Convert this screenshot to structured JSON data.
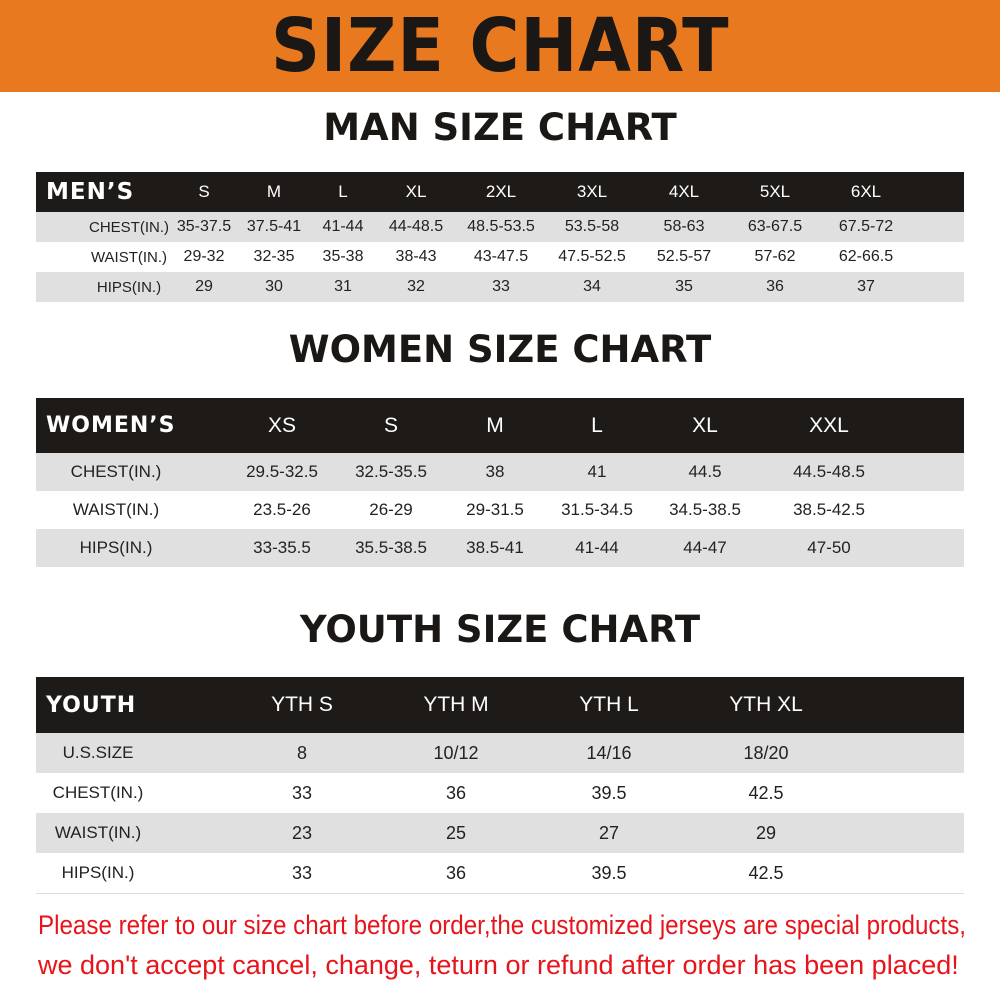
{
  "banner": "SIZE CHART",
  "men": {
    "title": "MAN SIZE CHART",
    "header": [
      "MEN’S",
      "S",
      "M",
      "L",
      "XL",
      "2XL",
      "3XL",
      "4XL",
      "5XL",
      "6XL"
    ],
    "rows": [
      [
        "CHEST(IN.)",
        "35-37.5",
        "37.5-41",
        "41-44",
        "44-48.5",
        "48.5-53.5",
        "53.5-58",
        "58-63",
        "63-67.5",
        "67.5-72"
      ],
      [
        "WAIST(IN.)",
        "29-32",
        "32-35",
        "35-38",
        "38-43",
        "43-47.5",
        "47.5-52.5",
        "52.5-57",
        "57-62",
        "62-66.5"
      ],
      [
        "HIPS(IN.)",
        "29",
        "30",
        "31",
        "32",
        "33",
        "34",
        "35",
        "36",
        "37"
      ]
    ]
  },
  "women": {
    "title": "WOMEN SIZE CHART",
    "header": [
      "WOMEN’S",
      "XS",
      "S",
      "M",
      "L",
      "XL",
      "XXL"
    ],
    "rows": [
      [
        "CHEST(IN.)",
        "29.5-32.5",
        "32.5-35.5",
        "38",
        "41",
        "44.5",
        "44.5-48.5"
      ],
      [
        "WAIST(IN.)",
        "23.5-26",
        "26-29",
        "29-31.5",
        "31.5-34.5",
        "34.5-38.5",
        "38.5-42.5"
      ],
      [
        "HIPS(IN.)",
        "33-35.5",
        "35.5-38.5",
        "38.5-41",
        "41-44",
        "44-47",
        "47-50"
      ]
    ]
  },
  "youth": {
    "title": "YOUTH SIZE CHART",
    "header": [
      "YOUTH",
      "YTH S",
      "YTH M",
      "YTH L",
      "YTH XL"
    ],
    "rows": [
      [
        "U.S.SIZE",
        "8",
        "10/12",
        "14/16",
        "18/20"
      ],
      [
        "CHEST(IN.)",
        "33",
        "36",
        "39.5",
        "42.5"
      ],
      [
        "WAIST(IN.)",
        "23",
        "25",
        "27",
        "29"
      ],
      [
        "HIPS(IN.)",
        "33",
        "36",
        "39.5",
        "42.5"
      ]
    ]
  },
  "notice": {
    "line1": "Please refer to our size chart before order,the customized jerseys are special products,",
    "line2": "we don't accept cancel, change, teturn or refund after order has been placed!"
  },
  "colors": {
    "banner": "#e8791e",
    "header_row": "#1e1a17",
    "stripe": "#e0e0e0",
    "notice": "#e8141b"
  }
}
